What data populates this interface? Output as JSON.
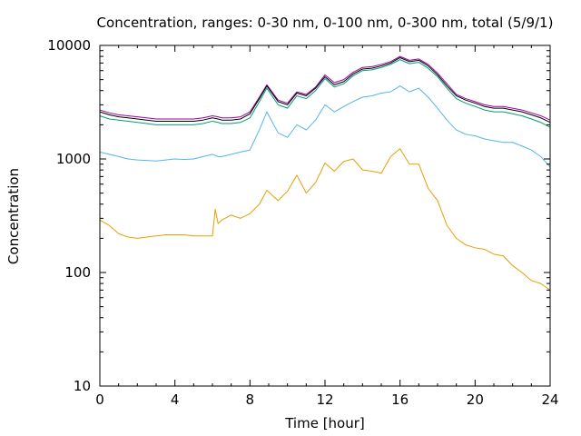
{
  "chart_data": {
    "type": "line",
    "title": "Concentration, ranges: 0-30 nm, 0-100 nm, 0-300 nm, total (5/9/1)",
    "xlabel": "Time [hour]",
    "ylabel": "Concentration",
    "xlim": [
      0,
      24
    ],
    "ylim": [
      10,
      10000
    ],
    "yscale": "log",
    "grid": false,
    "legend": "none",
    "x_ticks": [
      0,
      4,
      8,
      12,
      16,
      20,
      24
    ],
    "x_tick_labels": [
      "0",
      "4",
      "8",
      "12",
      "16",
      "20",
      "24"
    ],
    "y_ticks": [
      10,
      100,
      1000,
      10000
    ],
    "y_tick_labels": [
      "10",
      "100",
      "1000",
      "10000"
    ],
    "series": [
      {
        "color": "#a000a0",
        "x": [
          0,
          0.5,
          1,
          1.5,
          2,
          2.5,
          3,
          3.5,
          4,
          4.5,
          5,
          5.5,
          6,
          6.3,
          6.5,
          7,
          7.5,
          8,
          8.5,
          8.9,
          9.5,
          10,
          10.5,
          11,
          11.5,
          12,
          12.5,
          13,
          13.5,
          14,
          14.5,
          15,
          15.5,
          16,
          16.5,
          17,
          17.5,
          18,
          18.5,
          19,
          19.5,
          20,
          20.5,
          21,
          21.5,
          22,
          22.5,
          23,
          23.5,
          24
        ],
        "y": [
          2700,
          2550,
          2450,
          2400,
          2350,
          2300,
          2250,
          2250,
          2250,
          2250,
          2250,
          2300,
          2400,
          2350,
          2300,
          2300,
          2350,
          2600,
          3500,
          4500,
          3300,
          3100,
          3900,
          3700,
          4300,
          5500,
          4700,
          5000,
          5800,
          6400,
          6500,
          6800,
          7200,
          8000,
          7400,
          7600,
          6800,
          5700,
          4600,
          3700,
          3400,
          3200,
          3000,
          2900,
          2900,
          2800,
          2700,
          2550,
          2400,
          2200
        ]
      },
      {
        "color": "#000000",
        "x": [
          0,
          0.5,
          1,
          1.5,
          2,
          2.5,
          3,
          3.5,
          4,
          4.5,
          5,
          5.5,
          6,
          6.3,
          6.5,
          7,
          7.5,
          8,
          8.5,
          8.9,
          9.5,
          10,
          10.5,
          11,
          11.5,
          12,
          12.5,
          13,
          13.5,
          14,
          14.5,
          15,
          15.5,
          16,
          16.5,
          17,
          17.5,
          18,
          18.5,
          19,
          19.5,
          20,
          20.5,
          21,
          21.5,
          22,
          22.5,
          23,
          23.5,
          24
        ],
        "y": [
          2600,
          2450,
          2350,
          2300,
          2250,
          2200,
          2150,
          2150,
          2150,
          2150,
          2150,
          2200,
          2300,
          2250,
          2200,
          2200,
          2250,
          2500,
          3400,
          4400,
          3200,
          3000,
          3800,
          3600,
          4200,
          5300,
          4500,
          4800,
          5600,
          6200,
          6300,
          6600,
          7000,
          7800,
          7200,
          7400,
          6600,
          5500,
          4400,
          3600,
          3300,
          3100,
          2900,
          2800,
          2800,
          2700,
          2600,
          2450,
          2300,
          2100
        ]
      },
      {
        "color": "#009e73",
        "x": [
          0,
          0.5,
          1,
          1.5,
          2,
          2.5,
          3,
          3.5,
          4,
          4.5,
          5,
          5.5,
          6,
          6.3,
          6.5,
          7,
          7.5,
          8,
          8.5,
          8.9,
          9.5,
          10,
          10.5,
          11,
          11.5,
          12,
          12.5,
          13,
          13.5,
          14,
          14.5,
          15,
          15.5,
          16,
          16.5,
          17,
          17.5,
          18,
          18.5,
          19,
          19.5,
          20,
          20.5,
          21,
          21.5,
          22,
          22.5,
          23,
          23.5,
          24
        ],
        "y": [
          2400,
          2250,
          2200,
          2150,
          2100,
          2050,
          2000,
          2000,
          2000,
          2000,
          2000,
          2050,
          2150,
          2100,
          2050,
          2050,
          2100,
          2300,
          3200,
          4200,
          3000,
          2800,
          3600,
          3400,
          4000,
          5100,
          4300,
          4600,
          5400,
          6000,
          6100,
          6400,
          6800,
          7500,
          6900,
          7100,
          6300,
          5300,
          4200,
          3400,
          3100,
          2900,
          2700,
          2600,
          2600,
          2500,
          2400,
          2250,
          2100,
          1900
        ]
      },
      {
        "color": "#56b4e9",
        "x": [
          0,
          0.5,
          1,
          1.5,
          2,
          2.5,
          3,
          3.5,
          4,
          4.5,
          5,
          5.5,
          6,
          6.3,
          6.5,
          7,
          7.5,
          8,
          8.5,
          8.9,
          9.5,
          10,
          10.5,
          11,
          11.5,
          12,
          12.5,
          13,
          13.5,
          14,
          14.5,
          15,
          15.5,
          16,
          16.5,
          17,
          17.5,
          18,
          18.5,
          19,
          19.5,
          20,
          20.5,
          21,
          21.5,
          22,
          22.5,
          23,
          23.5,
          24
        ],
        "y": [
          1150,
          1100,
          1050,
          1000,
          980,
          970,
          960,
          980,
          1000,
          990,
          1000,
          1050,
          1100,
          1050,
          1050,
          1100,
          1150,
          1200,
          1800,
          2600,
          1700,
          1550,
          2000,
          1800,
          2200,
          3000,
          2600,
          2900,
          3200,
          3500,
          3600,
          3800,
          3900,
          4400,
          3900,
          4200,
          3500,
          2800,
          2200,
          1800,
          1650,
          1600,
          1500,
          1450,
          1400,
          1400,
          1300,
          1200,
          1050,
          850
        ]
      },
      {
        "color": "#e69f00",
        "x": [
          0,
          0.5,
          1,
          1.5,
          2,
          2.5,
          3,
          3.5,
          4,
          4.5,
          5,
          5.5,
          6,
          6.15,
          6.3,
          6.5,
          7,
          7.5,
          8,
          8.5,
          8.9,
          9.5,
          10,
          10.5,
          11,
          11.5,
          12,
          12.5,
          13,
          13.5,
          14,
          14.5,
          15,
          15.5,
          16,
          16.5,
          17,
          17.5,
          18,
          18.5,
          19,
          19.5,
          20,
          20.5,
          21,
          21.5,
          22,
          22.5,
          23,
          23.5,
          24
        ],
        "y": [
          290,
          260,
          220,
          205,
          200,
          205,
          210,
          215,
          215,
          215,
          210,
          210,
          210,
          360,
          270,
          290,
          320,
          300,
          330,
          400,
          530,
          430,
          520,
          720,
          500,
          620,
          920,
          780,
          950,
          1000,
          800,
          780,
          750,
          1050,
          1230,
          900,
          900,
          550,
          430,
          260,
          200,
          175,
          165,
          160,
          145,
          140,
          115,
          100,
          85,
          80,
          70
        ]
      }
    ]
  }
}
